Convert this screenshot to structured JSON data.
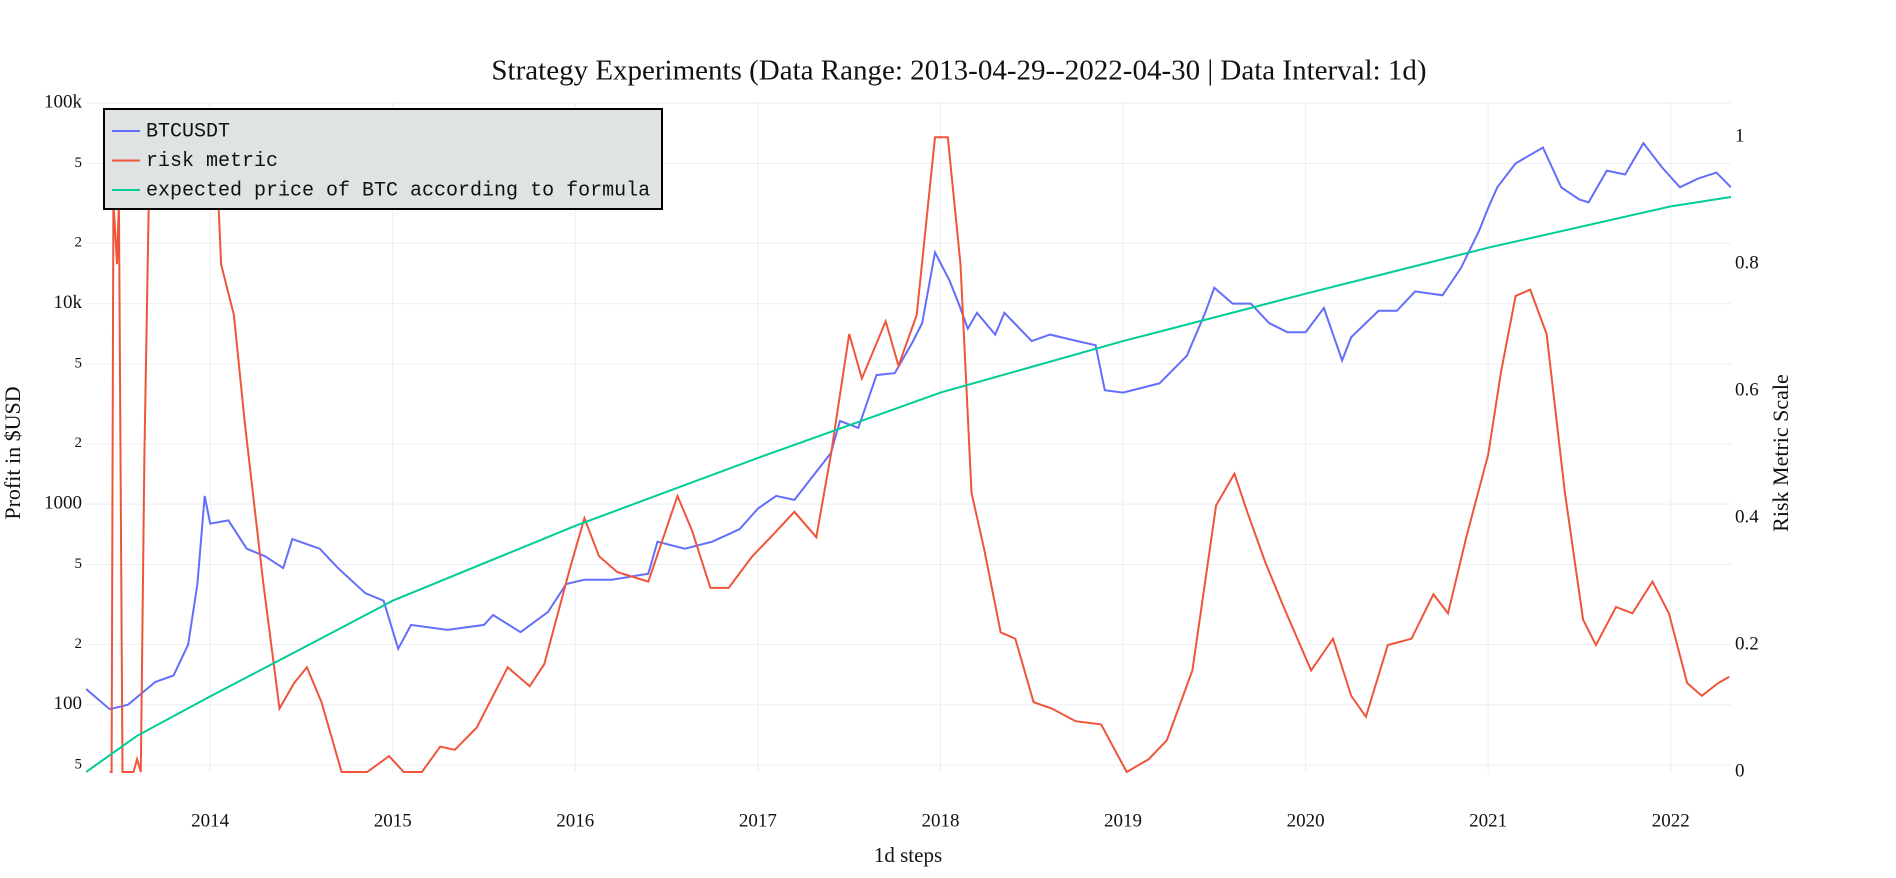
{
  "chart_data": {
    "type": "line",
    "title": "Strategy Experiments (Data Range: 2013-04-29--2022-04-30 | Data Interval: 1d)",
    "x_label": "1d steps",
    "y_label": "Profit in $USD",
    "y2_label": "Risk Metric Scale",
    "yscale": "log",
    "grid": true,
    "legend": "top-left",
    "xlim": [
      2013.32,
      2022.33
    ],
    "xticks": [
      2014,
      2015,
      2016,
      2017,
      2018,
      2019,
      2020,
      2021,
      2022
    ],
    "ylim": [
      46.2,
      100000
    ],
    "yticks": [
      {
        "value": 50,
        "label": "5"
      },
      100,
      {
        "value": 200,
        "label": "2"
      },
      {
        "value": 500,
        "label": "5"
      },
      1000,
      {
        "value": 2000,
        "label": "2"
      },
      {
        "value": 5000,
        "label": "5"
      },
      {
        "value": 10000,
        "label": "10k"
      },
      {
        "value": 20000,
        "label": "2"
      },
      {
        "value": 50000,
        "label": "5"
      },
      {
        "value": 100000,
        "label": "100k"
      }
    ],
    "y2lim": [
      0,
      1.054
    ],
    "y2ticks": [
      0,
      0.2,
      0.4,
      0.6,
      0.8,
      1
    ],
    "series": [
      {
        "name": "BTCUSDT",
        "color": "#636efa",
        "x": [
          2013.32,
          2013.45,
          2013.55,
          2013.7,
          2013.8,
          2013.88,
          2013.93,
          2013.97,
          2014.0,
          2014.1,
          2014.2,
          2014.3,
          2014.4,
          2014.45,
          2014.6,
          2014.7,
          2014.85,
          2014.95,
          2015.03,
          2015.1,
          2015.3,
          2015.5,
          2015.55,
          2015.7,
          2015.85,
          2015.95,
          2016.05,
          2016.2,
          2016.4,
          2016.45,
          2016.6,
          2016.75,
          2016.9,
          2017.0,
          2017.1,
          2017.2,
          2017.25,
          2017.4,
          2017.45,
          2017.55,
          2017.65,
          2017.75,
          2017.85,
          2017.9,
          2017.97,
          2018.05,
          2018.1,
          2018.15,
          2018.2,
          2018.3,
          2018.35,
          2018.5,
          2018.6,
          2018.75,
          2018.85,
          2018.9,
          2019.0,
          2019.2,
          2019.35,
          2019.45,
          2019.5,
          2019.6,
          2019.7,
          2019.8,
          2019.9,
          2020.0,
          2020.1,
          2020.2,
          2020.25,
          2020.4,
          2020.5,
          2020.6,
          2020.75,
          2020.85,
          2020.95,
          2021.0,
          2021.05,
          2021.15,
          2021.3,
          2021.4,
          2021.5,
          2021.55,
          2021.65,
          2021.75,
          2021.85,
          2021.95,
          2022.05,
          2022.15,
          2022.25,
          2022.33
        ],
        "values": [
          120,
          95,
          100,
          130,
          140,
          200,
          400,
          1100,
          800,
          830,
          600,
          550,
          480,
          670,
          600,
          480,
          360,
          330,
          190,
          250,
          236,
          250,
          280,
          230,
          290,
          400,
          420,
          420,
          450,
          650,
          600,
          650,
          750,
          950,
          1100,
          1050,
          1200,
          1800,
          2600,
          2400,
          4400,
          4500,
          6500,
          8000,
          18000,
          13000,
          10000,
          7500,
          9000,
          7000,
          9000,
          6500,
          7000,
          6500,
          6200,
          3700,
          3600,
          4000,
          5500,
          9000,
          12000,
          10000,
          10000,
          8000,
          7200,
          7200,
          9500,
          5200,
          6800,
          9200,
          9200,
          11500,
          11000,
          15000,
          23000,
          30000,
          38000,
          50000,
          60000,
          38000,
          33000,
          32000,
          46000,
          44000,
          63000,
          48000,
          38000,
          42000,
          45000,
          38000
        ]
      },
      {
        "name": "risk metric",
        "color": "#ef553b",
        "axis": "y2",
        "x": [
          2013.45,
          2013.46,
          2013.47,
          2013.49,
          2013.5,
          2013.52,
          2013.58,
          2013.6,
          2013.62,
          2013.64,
          2013.67,
          2014.03,
          2014.06,
          2014.13,
          2014.19,
          2014.29,
          2014.38,
          2014.46,
          2014.53,
          2014.61,
          2014.72,
          2014.86,
          2014.98,
          2015.06,
          2015.16,
          2015.26,
          2015.34,
          2015.46,
          2015.63,
          2015.75,
          2015.83,
          2015.97,
          2016.05,
          2016.13,
          2016.23,
          2016.4,
          2016.56,
          2016.64,
          2016.74,
          2016.84,
          2016.97,
          2017.07,
          2017.2,
          2017.32,
          2017.4,
          2017.5,
          2017.57,
          2017.7,
          2017.77,
          2017.87,
          2017.97,
          2018.04,
          2018.11,
          2018.17,
          2018.24,
          2018.33,
          2018.41,
          2018.51,
          2018.61,
          2018.74,
          2018.88,
          2019.02,
          2019.14,
          2019.24,
          2019.38,
          2019.51,
          2019.61,
          2019.68,
          2019.78,
          2019.88,
          2020.03,
          2020.15,
          2020.25,
          2020.33,
          2020.45,
          2020.58,
          2020.7,
          2020.78,
          2020.88,
          2021.0,
          2021.07,
          2021.15,
          2021.23,
          2021.32,
          2021.42,
          2021.52,
          2021.59,
          2021.7,
          2021.79,
          2021.9,
          2021.99,
          2022.09,
          2022.17,
          2022.26,
          2022.32
        ],
        "values": [
          0,
          0,
          0.9,
          0.8,
          0.9,
          0,
          0,
          0.02,
          0,
          0.5,
          1.0,
          1.0,
          0.8,
          0.72,
          0.55,
          0.3,
          0.1,
          0.14,
          0.165,
          0.11,
          0,
          0,
          0.025,
          0,
          0,
          0.04,
          0.035,
          0.07,
          0.165,
          0.135,
          0.17,
          0.32,
          0.4,
          0.34,
          0.315,
          0.3,
          0.435,
          0.38,
          0.29,
          0.29,
          0.34,
          0.37,
          0.41,
          0.37,
          0.5,
          0.69,
          0.62,
          0.71,
          0.64,
          0.72,
          1.0,
          1.0,
          0.8,
          0.44,
          0.35,
          0.22,
          0.21,
          0.11,
          0.1,
          0.08,
          0.075,
          0,
          0.02,
          0.05,
          0.16,
          0.42,
          0.47,
          0.41,
          0.33,
          0.26,
          0.16,
          0.21,
          0.12,
          0.087,
          0.2,
          0.21,
          0.28,
          0.25,
          0.37,
          0.5,
          0.63,
          0.75,
          0.76,
          0.69,
          0.44,
          0.24,
          0.2,
          0.26,
          0.25,
          0.3,
          0.25,
          0.14,
          0.12,
          0.14,
          0.15
        ]
      },
      {
        "name": "expected price of BTC according to formula",
        "color": "#00cc96",
        "x": [
          2013.32,
          2013.6,
          2014.0,
          2014.5,
          2015.0,
          2016.0,
          2017.0,
          2018.0,
          2019.0,
          2020.0,
          2021.0,
          2022.0,
          2022.33
        ],
        "values": [
          46.2,
          70,
          110,
          190,
          330,
          780,
          1700,
          3600,
          6500,
          11200,
          19000,
          30500,
          34000
        ]
      }
    ]
  }
}
